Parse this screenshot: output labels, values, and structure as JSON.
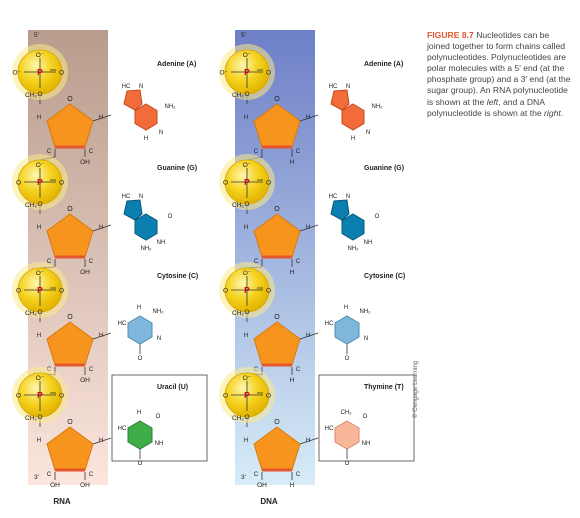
{
  "figure": {
    "number": "FIGURE 8.7",
    "caption_parts": [
      " Nucleotides can be joined together to form chains called polynucleotides. Polynucleotides are polar molecules with a 5′ end (at the phosphate group) and a 3′ end (at the sugar group). An RNA polynucleotide is shown at the ",
      "left",
      ", and a DNA polynucleotide is shown at the ",
      "right",
      "."
    ],
    "credit": "© Cengage Learning"
  },
  "strands": [
    {
      "label": "RNA",
      "end5": "5′",
      "end3": "3′",
      "sugar_bottom_left": "OH",
      "sugar_bottom_right": "OH",
      "bases": [
        {
          "name": "Adenine (A)",
          "kind": "purine",
          "color": "#f26b3a",
          "dark": "#c44a1e",
          "subs": [
            "HC",
            "N",
            "NH₂",
            "N",
            "H"
          ]
        },
        {
          "name": "Guanine (G)",
          "kind": "purine",
          "color": "#0a7fb0",
          "dark": "#06587a",
          "subs": [
            "HC",
            "N",
            "O",
            "NH",
            "NH₂"
          ]
        },
        {
          "name": "Cytosine (C)",
          "kind": "pyrimidine",
          "color": "#7fb7dc",
          "dark": "#4f8db8",
          "subs": [
            "H",
            "NH₂",
            "HC",
            "N",
            "O"
          ]
        },
        {
          "name": "Uracil (U)",
          "kind": "pyrimidine",
          "color": "#3fae49",
          "dark": "#2a7e33",
          "subs": [
            "H",
            "O",
            "HC",
            "NH",
            "O"
          ],
          "boxed": true
        }
      ]
    },
    {
      "label": "DNA",
      "end5": "5′",
      "end3": "3′",
      "sugar_bottom_left": "OH",
      "sugar_bottom_right": "H",
      "bases": [
        {
          "name": "Adenine (A)",
          "kind": "purine",
          "color": "#f26b3a",
          "dark": "#c44a1e",
          "subs": [
            "HC",
            "N",
            "NH₂",
            "N",
            "H"
          ]
        },
        {
          "name": "Guanine (G)",
          "kind": "purine",
          "color": "#0a7fb0",
          "dark": "#06587a",
          "subs": [
            "HC",
            "N",
            "O",
            "NH",
            "NH₂"
          ]
        },
        {
          "name": "Cytosine (C)",
          "kind": "pyrimidine",
          "color": "#7fb7dc",
          "dark": "#4f8db8",
          "subs": [
            "H",
            "NH₂",
            "HC",
            "N",
            "O"
          ]
        },
        {
          "name": "Thymine (T)",
          "kind": "pyrimidine",
          "color": "#f8b79a",
          "dark": "#d98a68",
          "subs": [
            "CH₃",
            "O",
            "HC",
            "NH",
            "O"
          ],
          "boxed": true
        }
      ]
    }
  ],
  "phosphate": {
    "p": "P",
    "o_minus": "O⁻",
    "o": "O"
  },
  "sugar": {
    "ch2": "CH₂",
    "o": "O",
    "c": "C",
    "h": "H",
    "oh": "OH"
  },
  "colors": {
    "rna_backbone_top": "#b89c8c",
    "rna_backbone_bottom": "#fbe5dd",
    "dna_backbone_top": "#6d7fc7",
    "dna_backbone_bottom": "#d7ecf7",
    "phosphate_fill": "#f5d21e",
    "phosphate_halo": "#fbe98a",
    "sugar_fill": "#f7941d",
    "sugar_edge": "#e4572e",
    "fig_label": "#e4572e"
  }
}
